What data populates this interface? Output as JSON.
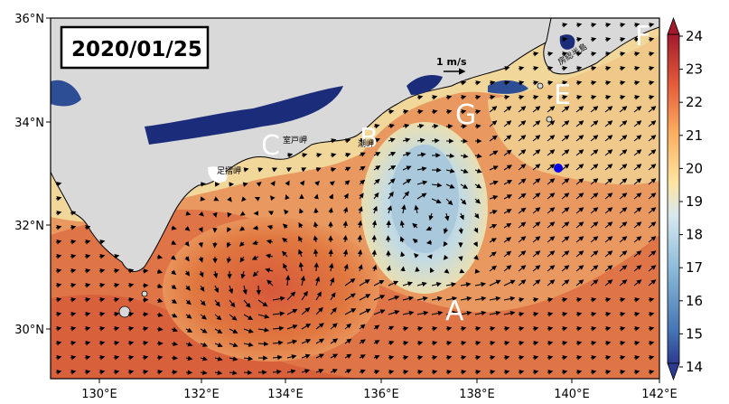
{
  "date": "2020/01/25",
  "scale_arrow_label": "1 m/s",
  "x_ticks": [
    "130°E",
    "132°E",
    "134°E",
    "136°E",
    "138°E",
    "140°E",
    "142°E"
  ],
  "y_ticks": [
    "36°N",
    "34°N",
    "32°N",
    "30°N"
  ],
  "colorbar_ticks": [
    "24",
    "23",
    "22",
    "21",
    "20",
    "19",
    "18",
    "17",
    "16",
    "15",
    "14"
  ],
  "region_labels": [
    {
      "id": "A",
      "text": "A"
    },
    {
      "id": "B",
      "text": "B"
    },
    {
      "id": "C",
      "text": "C"
    },
    {
      "id": "E",
      "text": "E"
    },
    {
      "id": "F",
      "text": "F"
    },
    {
      "id": "G",
      "text": "G"
    }
  ],
  "place_names": {
    "muroto": "室戸岬",
    "shionomisaki": "潮岬",
    "ashizuri": "足摺岬",
    "boso": "房総半島"
  },
  "station_marker_color": "#0000ee",
  "colors": {
    "land": "#d9d9d9",
    "coast_cold": "#1b2d7a",
    "warm": "#d4603a",
    "cool": "#b6d3e0"
  }
}
